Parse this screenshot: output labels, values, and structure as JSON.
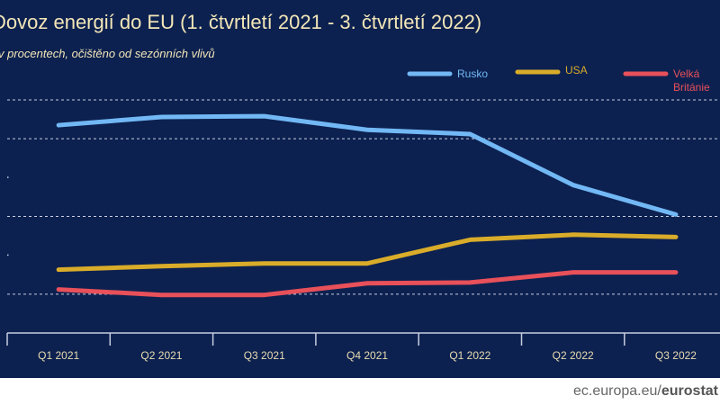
{
  "title": "Dovoz energií do EU (1. čtvrtletí 2021 - 3. čtvrtletí 2022)",
  "subtitle": "v procentech, očištěno od sezónních vlivů",
  "footer": {
    "domain": "ec.europa.eu/",
    "brand": "eurostat"
  },
  "chart_data": {
    "type": "line",
    "title": "Dovoz energií do EU (1. čtvrtletí 2021 - 3. čtvrtletí 2022)",
    "subtitle": "v procentech, očištěno od sezónních vlivů",
    "categories": [
      "Q1 2021",
      "Q2 2021",
      "Q3 2021",
      "Q4 2021",
      "Q1 2022",
      "Q2 2022",
      "Q3 2022"
    ],
    "ylim": [
      0,
      60
    ],
    "grid": true,
    "legend_position": "top-right",
    "series": [
      {
        "name": "Rusko",
        "color": "#72b8f5",
        "values": [
          53.5,
          55.6,
          55.8,
          52.3,
          51.2,
          38.1,
          30.5
        ]
      },
      {
        "name": "USA",
        "color": "#d9ac2a",
        "values": [
          16.3,
          17.2,
          17.9,
          17.9,
          24.0,
          25.3,
          24.7
        ]
      },
      {
        "name": "Velká Británie",
        "color": "#e8505a",
        "values": [
          11.2,
          9.8,
          9.8,
          12.8,
          13.0,
          15.6,
          15.6
        ]
      }
    ]
  }
}
